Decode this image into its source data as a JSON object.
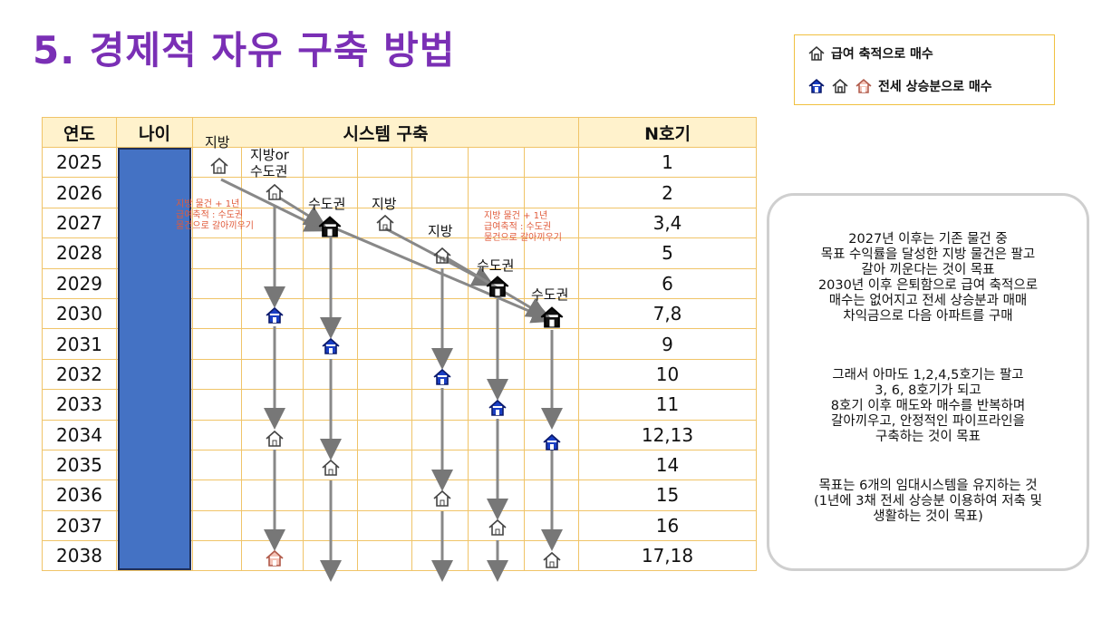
{
  "title": "5. 경제적 자유 구축 방법",
  "legend": {
    "row1": "급여 축적으로 매수",
    "row2": "전세 상승분으로 매수"
  },
  "table": {
    "headers": [
      "연도",
      "나이",
      "시스템 구축",
      "N호기"
    ],
    "years": [
      "2025",
      "2026",
      "2027",
      "2028",
      "2029",
      "2030",
      "2031",
      "2032",
      "2033",
      "2034",
      "2035",
      "2036",
      "2037",
      "2038"
    ],
    "n": [
      "1",
      "2",
      "3,4",
      "5",
      "6",
      "7,8",
      "9",
      "10",
      "11",
      "12,13",
      "14",
      "15",
      "16",
      "17,18"
    ]
  },
  "labels": {
    "l1": "지방",
    "l2a": "지방or",
    "l2b": "수도권",
    "l3": "수도권",
    "l4": "지방",
    "l5": "지방",
    "l6": "수도권",
    "l7": "수도권"
  },
  "notes": {
    "note1": [
      "지방 물건 + 1년",
      "급여축적 : 수도권",
      "물건으로 갈아끼우기"
    ],
    "note2": [
      "지방 물건 + 1년",
      "급여축적 : 수도권",
      "물건으로 갈아끼우기"
    ]
  },
  "info": {
    "p1": [
      "2027년 이후는 기존 물건 중",
      "목표 수익률을 달성한 지방 물건은 팔고",
      "갈아 끼운다는 것이 목표",
      "2030년 이후 은퇴함으로 급여 축적으로",
      "매수는 없어지고 전세 상승분과 매매",
      "차익금으로 다음 아파트를 구매"
    ],
    "p2": [
      "그래서 아마도 1,2,4,5호기는 팔고",
      "3, 6, 8호기가 되고",
      "8호기 이후 매도와 매수를 반복하며",
      "갈아끼우고, 안정적인 파이프라인을",
      "구축하는 것이 목표"
    ],
    "p3": [
      "목표는 6개의 임대시스템을 유지하는 것",
      "(1년에 3채 전세 상승분 이용하여 저축 및",
      "생활하는 것이 목표)"
    ]
  },
  "colors": {
    "title": "#7a2fb5",
    "age_bar": "#4472c4",
    "header_bg": "#fff2cc",
    "house_blue": "#1a3fc4",
    "house_pink": "#e8a090",
    "note": "#e05a3a"
  }
}
